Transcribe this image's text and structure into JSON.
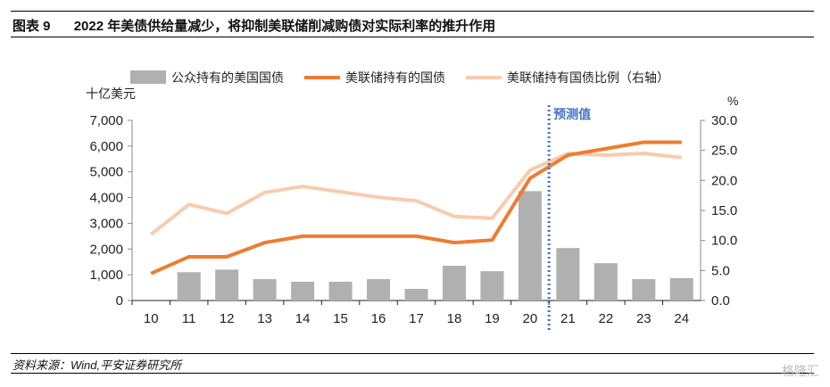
{
  "header": {
    "figure_no": "图表 9",
    "title": "2022 年美债供给量减少，将抑制美联储削减购债对实际利率的推升作用"
  },
  "footer": {
    "source": "资料来源：Wind,平安证券研究所",
    "watermark": "格隆汇"
  },
  "chart_data": {
    "type": "bar+line",
    "categories": [
      "10",
      "11",
      "12",
      "13",
      "14",
      "15",
      "16",
      "17",
      "18",
      "19",
      "20",
      "21",
      "22",
      "23",
      "24"
    ],
    "left_axis": {
      "label": "十亿美元",
      "ylim": [
        0,
        7000
      ],
      "ticks": [
        "0",
        "1,000",
        "2,000",
        "3,000",
        "4,000",
        "5,000",
        "6,000",
        "7,000"
      ]
    },
    "right_axis": {
      "label": "%",
      "ylim": [
        0,
        30
      ],
      "ticks": [
        "0.0",
        "5.0",
        "10.0",
        "15.0",
        "20.0",
        "25.0",
        "30.0"
      ]
    },
    "legend_position": "top",
    "annotation": {
      "text": "预测值",
      "after_category": "20",
      "color": "#4472C4"
    },
    "series": [
      {
        "name": "公众持有的美国国债",
        "type": "bar",
        "axis": "left",
        "color": "#B0B0B0",
        "values": [
          null,
          1100,
          1200,
          830,
          730,
          730,
          830,
          450,
          1350,
          1140,
          4250,
          2040,
          1450,
          830,
          870
        ]
      },
      {
        "name": "美联储持有的国债",
        "type": "line",
        "axis": "left",
        "color": "#ED7D31",
        "values": [
          1050,
          1700,
          1700,
          2250,
          2500,
          2500,
          2500,
          2500,
          2250,
          2350,
          4750,
          5650,
          5900,
          6150,
          6150
        ]
      },
      {
        "name": "美联储持有国债比例（右轴）",
        "type": "line",
        "axis": "right",
        "color": "#F8CBAD",
        "values": [
          11.0,
          16.0,
          14.5,
          18.0,
          19.0,
          18.1,
          17.2,
          16.6,
          14.0,
          13.7,
          21.7,
          24.5,
          24.2,
          24.5,
          23.8
        ]
      }
    ]
  }
}
